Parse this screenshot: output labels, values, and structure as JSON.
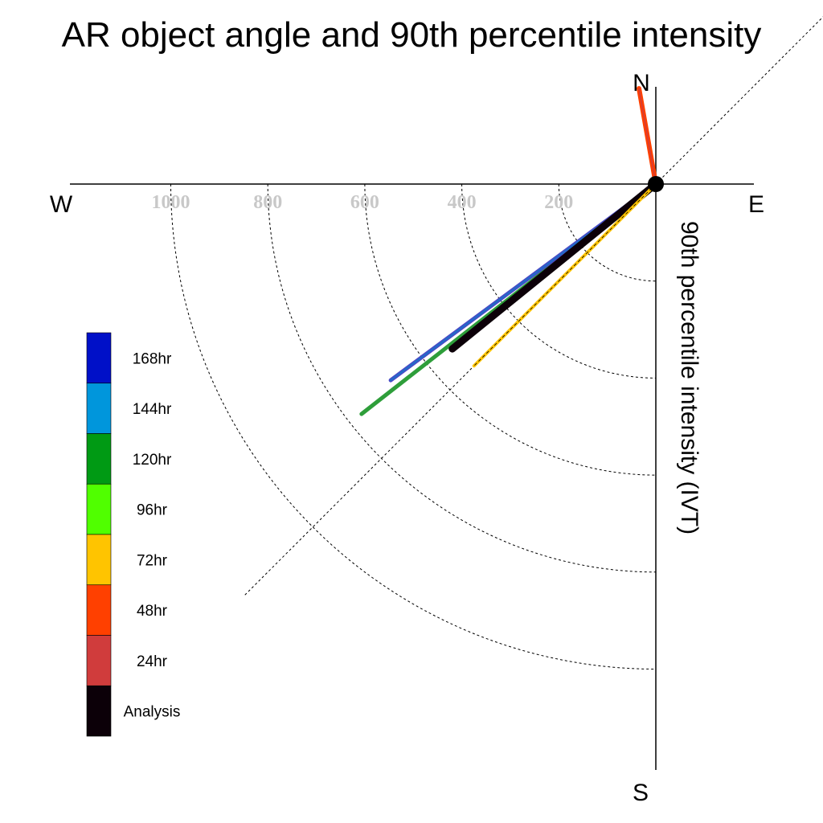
{
  "chart_data": {
    "type": "polar-line",
    "title": "AR object angle and 90th percentile intensity",
    "radial_label": "90th percentile intensity (IVT)",
    "compass": {
      "north": "N",
      "south": "S",
      "east": "E",
      "west": "W"
    },
    "rings": [
      200,
      400,
      600,
      800,
      1000
    ],
    "ring_labels": [
      "200",
      "400",
      "600",
      "800",
      "1000"
    ],
    "rmax": 1200,
    "diagonal_guides": [
      45,
      225
    ],
    "legend": [
      {
        "label": "168hr",
        "color": "#0010c8"
      },
      {
        "label": "144hr",
        "color": "#0096dc"
      },
      {
        "label": "120hr",
        "color": "#009a14"
      },
      {
        "label": "96hr",
        "color": "#50ff00"
      },
      {
        "label": "72hr",
        "color": "#ffc400"
      },
      {
        "label": "48hr",
        "color": "#ff4000"
      },
      {
        "label": "24hr",
        "color": "#d03c3c"
      },
      {
        "label": "Analysis",
        "color": "#0c0008"
      }
    ],
    "series": [
      {
        "name": "120hr",
        "angle": 232,
        "intensity": 770,
        "color": "#2e9e3a",
        "width": 5
      },
      {
        "name": "168hr",
        "angle": 233.5,
        "intensity": 680,
        "color": "#4a4ac6",
        "width": 5
      },
      {
        "name": "144hr",
        "angle": 233.5,
        "intensity": 680,
        "color": "#1e6ec8",
        "width": 2
      },
      {
        "name": "Analysis",
        "angle": 231,
        "intensity": 540,
        "color": "#0c0008",
        "width": 9
      },
      {
        "name": "72hr",
        "angle": 225,
        "intensity": 530,
        "color": "#ffc400",
        "width": 4
      },
      {
        "name": "48hr",
        "angle": 350,
        "intensity": 200,
        "color": "#ff4000",
        "width": 6
      }
    ]
  }
}
